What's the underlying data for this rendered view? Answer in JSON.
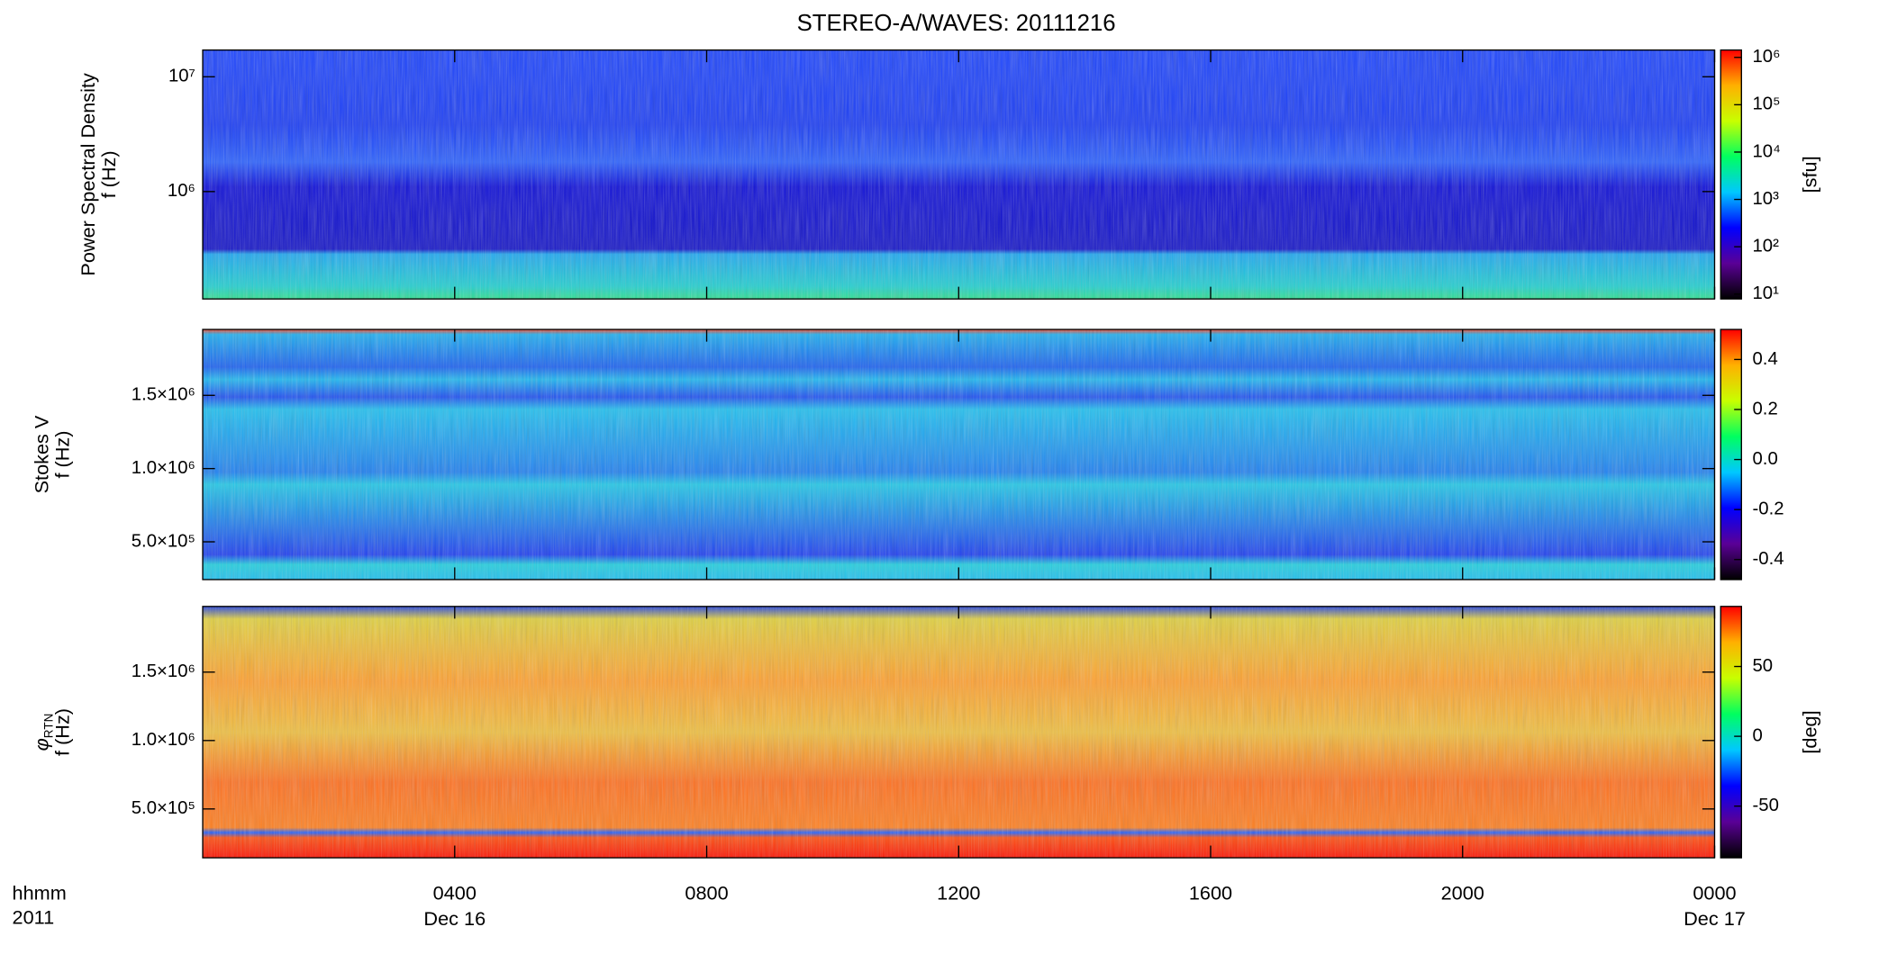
{
  "title": "STEREO-A/WAVES: 20111216",
  "colormap": [
    "#000000",
    "#5a0096",
    "#0000ff",
    "#00c8ff",
    "#00ff60",
    "#c8ff00",
    "#ffb000",
    "#ff0000"
  ],
  "x_axis": {
    "xlim": [
      0,
      24
    ],
    "xticks": [
      {
        "value": 4,
        "label": "0400"
      },
      {
        "value": 8,
        "label": "0800"
      },
      {
        "value": 12,
        "label": "1200"
      },
      {
        "value": 16,
        "label": "1600"
      },
      {
        "value": 20,
        "label": "2000"
      },
      {
        "value": 24,
        "label": "0000"
      }
    ],
    "date_labels": [
      {
        "value": 4,
        "label": "Dec 16"
      },
      {
        "value": 24,
        "label": "Dec 17"
      }
    ],
    "label": [
      "hhmm",
      "2011"
    ]
  },
  "chart_data": [
    {
      "type": "heatmap",
      "ylabel": [
        "Power Spectral Density",
        "f (Hz)"
      ],
      "ylog": true,
      "ylim": [
        116000,
        17100000
      ],
      "yticks": [
        {
          "value": 1000000,
          "label": "10⁶"
        },
        {
          "value": 10000000,
          "label": "10⁷"
        }
      ],
      "colorbar": {
        "log": true,
        "clim": [
          7.9,
          1430000
        ],
        "ticks": [
          {
            "value": 10,
            "label": "10¹"
          },
          {
            "value": 100,
            "label": "10²"
          },
          {
            "value": 1000,
            "label": "10³"
          },
          {
            "value": 10000,
            "label": "10⁴"
          },
          {
            "value": 100000,
            "label": "10⁵"
          },
          {
            "value": 1000000,
            "label": "10⁶"
          }
        ],
        "label": "[sfu]"
      }
    },
    {
      "type": "heatmap",
      "ylabel": [
        "Stokes V",
        "f (Hz)"
      ],
      "ylog": false,
      "ylim": [
        242000,
        1950000
      ],
      "yticks": [
        {
          "value": 500000,
          "label": "5.0×10⁵"
        },
        {
          "value": 1000000,
          "label": "1.0×10⁶"
        },
        {
          "value": 1500000,
          "label": "1.5×10⁶"
        }
      ],
      "colorbar": {
        "log": false,
        "clim": [
          -0.48,
          0.52
        ],
        "ticks": [
          -0.4,
          -0.2,
          {
            "value": 0,
            "label": "0.0"
          },
          0.2,
          0.4
        ]
      }
    },
    {
      "type": "heatmap",
      "ylabel": [
        "φ",
        "f (Hz)"
      ],
      "ylabel_subscript": "RTN",
      "ylog": false,
      "ylim": [
        143000,
        1980000
      ],
      "yticks": [
        {
          "value": 500000,
          "label": "5.0×10⁵"
        },
        {
          "value": 1000000,
          "label": "1.0×10⁶"
        },
        {
          "value": 1500000,
          "label": "1.5×10⁶"
        }
      ],
      "colorbar": {
        "log": false,
        "clim": [
          -87,
          93
        ],
        "ticks": [
          -50,
          0,
          50
        ],
        "label": "[deg]"
      }
    }
  ]
}
